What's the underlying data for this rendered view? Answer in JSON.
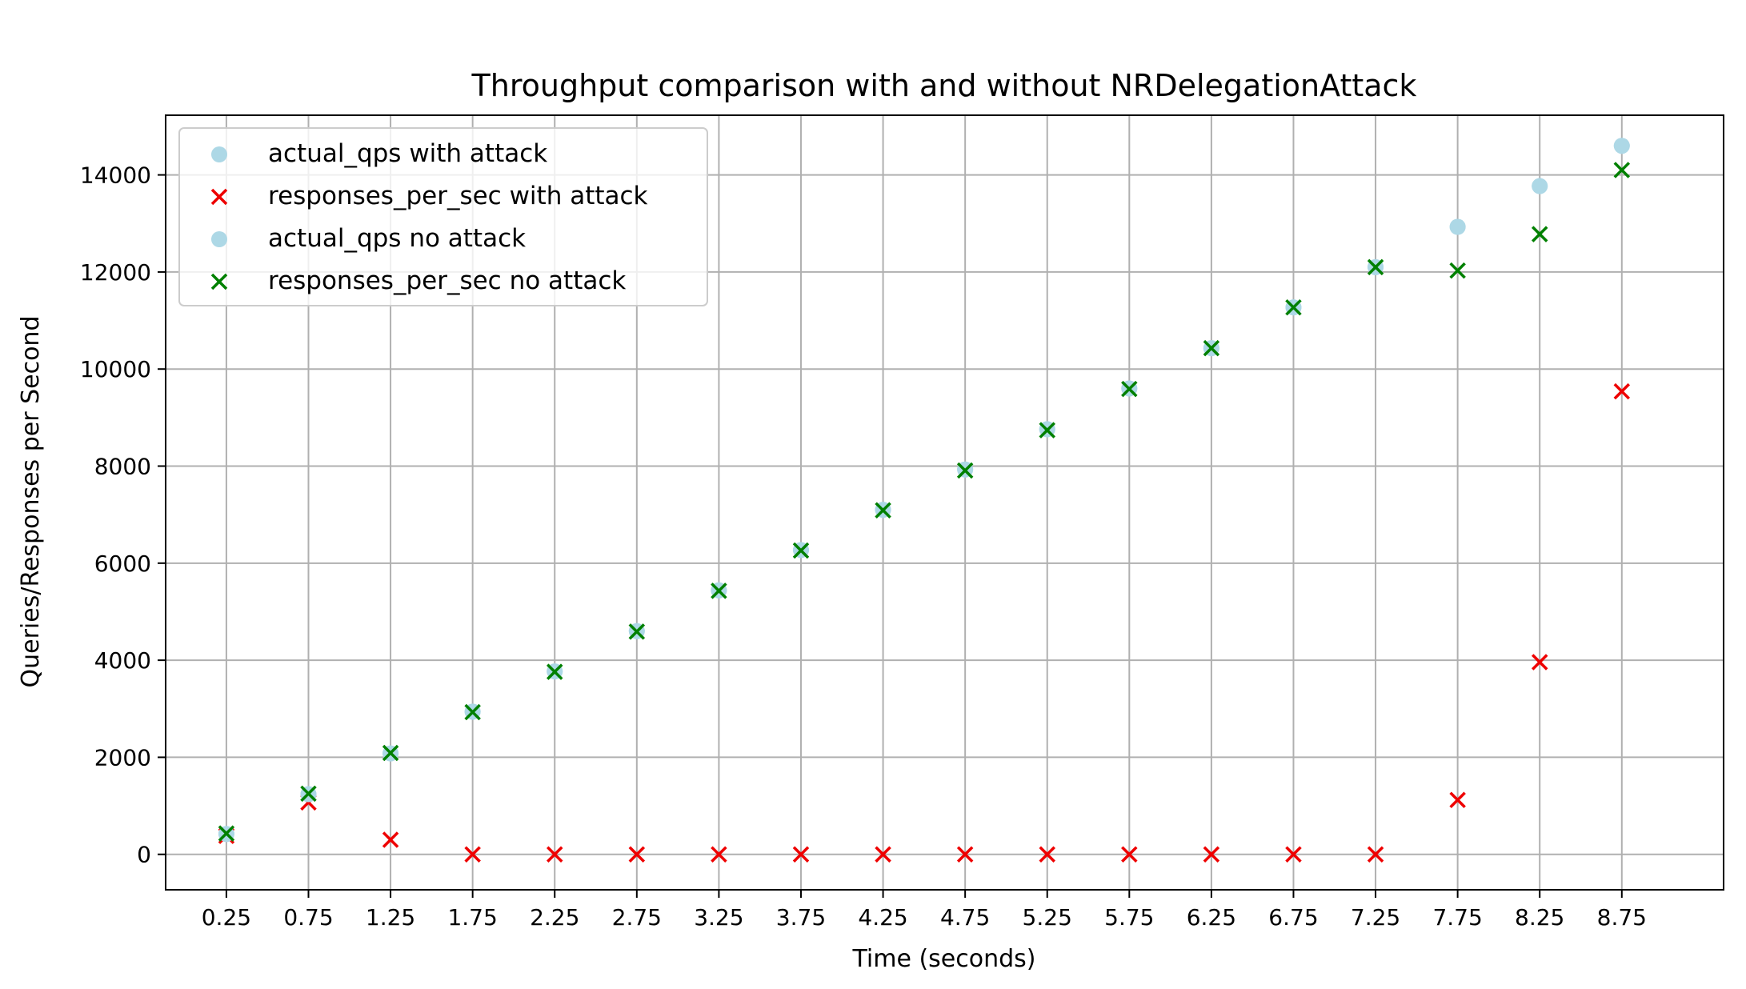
{
  "chart_data": {
    "type": "scatter",
    "title": "Throughput comparison with and without NRDelegationAttack",
    "xlabel": "Time (seconds)",
    "ylabel": "Queries/Responses per Second",
    "x": [
      0.25,
      0.75,
      1.25,
      1.75,
      2.25,
      2.75,
      3.25,
      3.75,
      4.25,
      4.75,
      5.25,
      5.75,
      6.25,
      6.75,
      7.25,
      7.75,
      8.25,
      8.75
    ],
    "x_tick_labels": [
      "0.25",
      "0.75",
      "1.25",
      "1.75",
      "2.25",
      "2.75",
      "3.25",
      "3.75",
      "4.25",
      "4.75",
      "5.25",
      "5.75",
      "6.25",
      "6.75",
      "7.25",
      "7.75",
      "8.25",
      "8.75"
    ],
    "y_ticks": [
      0,
      2000,
      4000,
      6000,
      8000,
      10000,
      12000,
      14000
    ],
    "y_tick_labels": [
      "0",
      "2000",
      "4000",
      "6000",
      "8000",
      "10000",
      "12000",
      "14000"
    ],
    "xlim": [
      -0.12,
      9.37
    ],
    "ylim": [
      -730,
      15230
    ],
    "grid": true,
    "legend_position": "upper-left",
    "series": [
      {
        "name": "actual_qps with attack",
        "marker": "circle",
        "color": "#add8e6",
        "values": [
          420,
          1240,
          2080,
          2940,
          3770,
          4600,
          5440,
          6270,
          7100,
          7930,
          8760,
          9600,
          10430,
          11270,
          12100,
          12930,
          13770,
          14600
        ]
      },
      {
        "name": "responses_per_sec with attack",
        "marker": "x",
        "color": "#ee0000",
        "values": [
          380,
          1070,
          300,
          0,
          0,
          0,
          0,
          0,
          0,
          0,
          0,
          0,
          0,
          0,
          0,
          1120,
          3960,
          9540
        ]
      },
      {
        "name": "actual_qps no attack",
        "marker": "circle",
        "color": "#add8e6",
        "values": [
          420,
          1240,
          2080,
          2940,
          3770,
          4600,
          5440,
          6270,
          7100,
          7930,
          8760,
          9600,
          10430,
          11270,
          12100,
          12930,
          13770,
          14600
        ]
      },
      {
        "name": "responses_per_sec no attack",
        "marker": "x",
        "color": "#008000",
        "values": [
          430,
          1250,
          2090,
          2930,
          3760,
          4590,
          5430,
          6260,
          7090,
          7910,
          8740,
          9590,
          10430,
          11270,
          12100,
          12030,
          12780,
          14100
        ]
      }
    ]
  }
}
